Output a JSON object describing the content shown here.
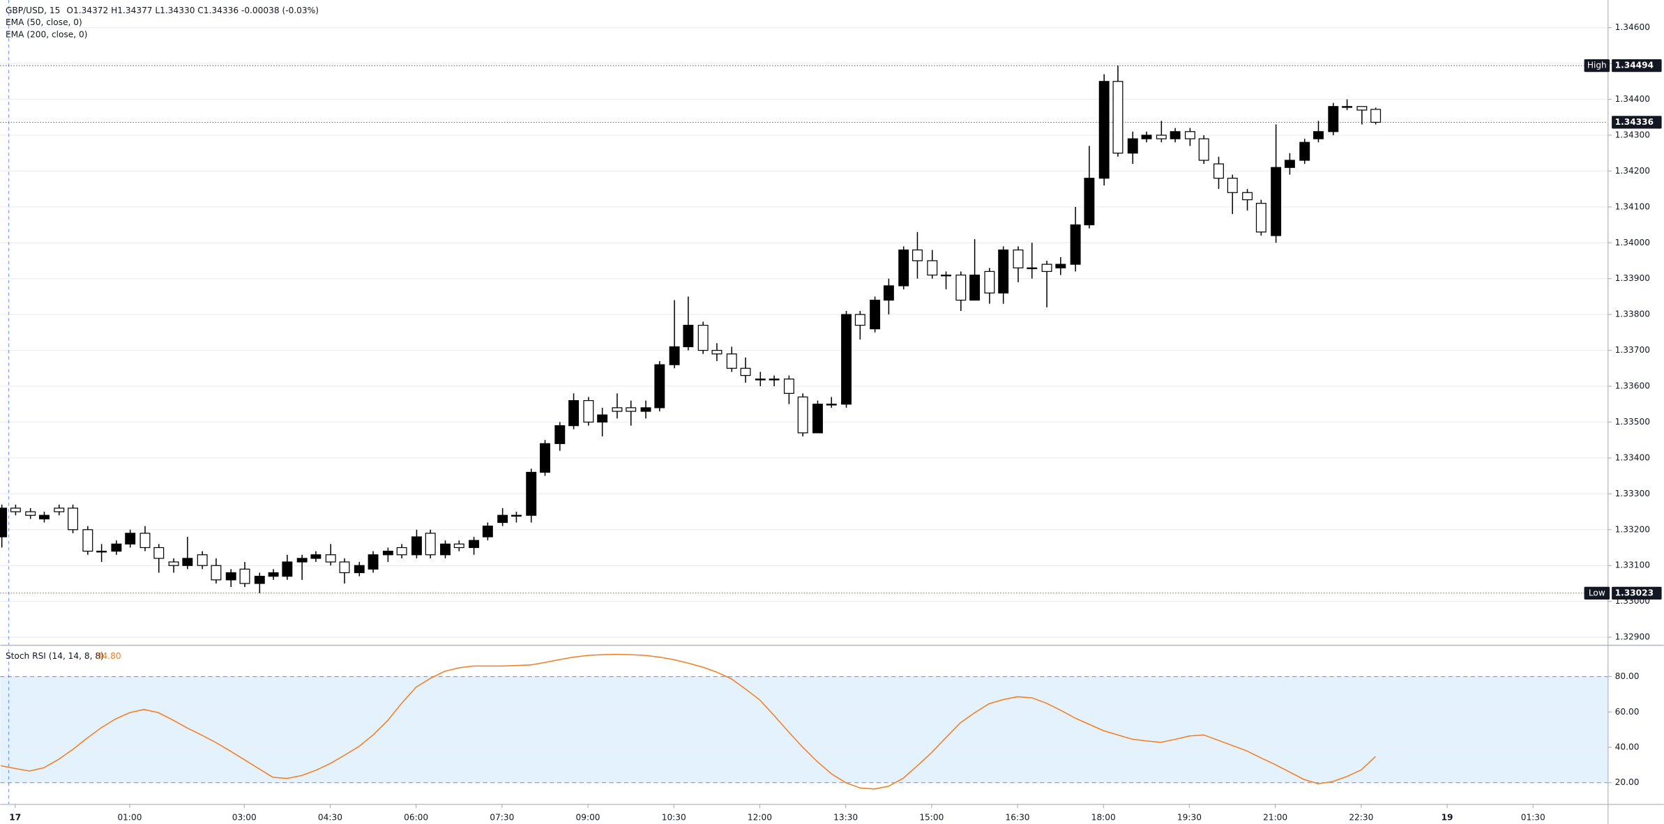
{
  "chart_data": [
    {
      "type": "candlestick",
      "title": "GBP/USD, 15",
      "ohlc": "O1.34372  H1.34377  L1.34330  C1.34336  -0.00038 (-0.03%)",
      "indicators": [
        "EMA (50, close, 0)",
        "EMA (200, close, 0)"
      ],
      "x": [
        -1.25,
        -1,
        -0.75,
        -0.5,
        -0.25,
        0,
        0.25,
        0.5,
        0.75,
        1,
        1.25,
        1.5,
        1.75,
        2,
        2.25,
        2.5,
        2.75,
        3,
        3.25,
        3.5,
        3.75,
        4,
        4.25,
        4.5,
        4.75,
        5,
        5.25,
        5.5,
        5.75,
        6,
        6.25,
        6.5,
        6.75,
        7,
        7.25,
        7.5,
        7.75,
        8,
        8.25,
        8.5,
        8.75,
        9,
        9.25,
        9.5,
        9.75,
        10,
        10.25,
        10.5,
        10.75,
        11,
        11.25,
        11.5,
        11.75,
        12,
        12.25,
        12.5,
        12.75,
        13,
        13.25,
        13.5,
        13.75,
        14,
        14.25,
        14.5,
        14.75,
        15,
        15.25,
        15.5,
        15.75,
        16,
        16.25,
        16.5,
        16.75,
        17,
        17.25,
        17.5,
        17.75,
        18,
        18.25,
        18.5,
        18.75,
        19,
        19.25,
        19.5,
        19.75,
        20,
        20.25,
        20.5,
        20.75,
        21,
        21.25,
        21.5,
        21.75,
        22,
        22.25,
        22.5,
        22.75
      ],
      "open": [
        1.3318,
        1.3326,
        1.3325,
        1.3323,
        1.3326,
        1.3326,
        1.332,
        1.3314,
        1.3314,
        1.3316,
        1.3319,
        1.3315,
        1.3311,
        1.331,
        1.3313,
        1.331,
        1.3306,
        1.3309,
        1.3305,
        1.3307,
        1.3307,
        1.3311,
        1.3312,
        1.3313,
        1.3311,
        1.3308,
        1.3309,
        1.3313,
        1.3315,
        1.3313,
        1.3319,
        1.3313,
        1.3316,
        1.3315,
        1.3318,
        1.3322,
        1.3324,
        1.3324,
        1.3336,
        1.3344,
        1.3349,
        1.3356,
        1.335,
        1.3354,
        1.3354,
        1.3353,
        1.3354,
        1.3366,
        1.3371,
        1.3377,
        1.337,
        1.3369,
        1.3365,
        1.3362,
        1.3362,
        1.3362,
        1.3357,
        1.3347,
        1.3355,
        1.3355,
        1.338,
        1.3376,
        1.3384,
        1.3388,
        1.3398,
        1.3395,
        1.3391,
        1.3391,
        1.3384,
        1.3392,
        1.3386,
        1.3398,
        1.3393,
        1.3394,
        1.3393,
        1.3394,
        1.3405,
        1.3418,
        1.3445,
        1.3425,
        1.3429,
        1.343,
        1.3429,
        1.3431,
        1.3429,
        1.3422,
        1.3418,
        1.3414,
        1.3411,
        1.3402,
        1.3421,
        1.3423,
        1.3429,
        1.3431,
        1.3438,
        1.3438,
        1.34372
      ],
      "high": [
        1.3327,
        1.3327,
        1.3326,
        1.3325,
        1.3327,
        1.3327,
        1.3321,
        1.3316,
        1.3317,
        1.332,
        1.3321,
        1.3316,
        1.3312,
        1.3318,
        1.3314,
        1.3312,
        1.3309,
        1.3311,
        1.3308,
        1.3309,
        1.3313,
        1.3313,
        1.3314,
        1.3316,
        1.3312,
        1.3311,
        1.3314,
        1.3315,
        1.3316,
        1.332,
        1.332,
        1.3317,
        1.3317,
        1.3318,
        1.3322,
        1.3326,
        1.3325,
        1.3337,
        1.3345,
        1.335,
        1.3358,
        1.3357,
        1.3354,
        1.3358,
        1.3356,
        1.3356,
        1.3367,
        1.3384,
        1.3385,
        1.3378,
        1.3372,
        1.3371,
        1.3368,
        1.3364,
        1.3363,
        1.3363,
        1.3358,
        1.3356,
        1.3357,
        1.3381,
        1.3381,
        1.3385,
        1.339,
        1.3399,
        1.3403,
        1.3398,
        1.3392,
        1.3392,
        1.3401,
        1.3393,
        1.3399,
        1.3399,
        1.34,
        1.3395,
        1.3396,
        1.341,
        1.3427,
        1.3447,
        1.34494,
        1.3431,
        1.3431,
        1.3434,
        1.3432,
        1.3432,
        1.343,
        1.3424,
        1.3419,
        1.3415,
        1.3412,
        1.3433,
        1.3425,
        1.3429,
        1.3434,
        1.3439,
        1.344,
        1.3438,
        1.34377
      ],
      "low": [
        1.3315,
        1.3324,
        1.3323,
        1.3322,
        1.3324,
        1.3319,
        1.3313,
        1.3311,
        1.3313,
        1.3315,
        1.3314,
        1.3308,
        1.3308,
        1.3309,
        1.3309,
        1.3305,
        1.3304,
        1.3304,
        1.33023,
        1.3306,
        1.3306,
        1.3306,
        1.3311,
        1.331,
        1.3305,
        1.3307,
        1.3308,
        1.3311,
        1.3312,
        1.3312,
        1.3312,
        1.3312,
        1.3314,
        1.3313,
        1.3317,
        1.3321,
        1.3322,
        1.3322,
        1.3335,
        1.3342,
        1.3348,
        1.3349,
        1.3346,
        1.3351,
        1.3349,
        1.3351,
        1.3353,
        1.3365,
        1.337,
        1.3369,
        1.3367,
        1.3364,
        1.3361,
        1.336,
        1.336,
        1.3355,
        1.3346,
        1.3347,
        1.3354,
        1.3354,
        1.3373,
        1.3375,
        1.338,
        1.3387,
        1.339,
        1.339,
        1.3387,
        1.3381,
        1.3384,
        1.3383,
        1.3383,
        1.3389,
        1.339,
        1.3382,
        1.3391,
        1.3392,
        1.3404,
        1.3416,
        1.3424,
        1.3422,
        1.3428,
        1.3428,
        1.3428,
        1.3427,
        1.3422,
        1.3415,
        1.3408,
        1.3409,
        1.3402,
        1.34,
        1.3419,
        1.3422,
        1.3428,
        1.343,
        1.3437,
        1.3433,
        1.3433
      ],
      "close": [
        1.3326,
        1.3325,
        1.3324,
        1.3324,
        1.3325,
        1.332,
        1.3314,
        1.3314,
        1.3316,
        1.3319,
        1.3315,
        1.3312,
        1.331,
        1.3312,
        1.331,
        1.3306,
        1.3308,
        1.3305,
        1.3307,
        1.3308,
        1.3311,
        1.3312,
        1.3313,
        1.3311,
        1.3308,
        1.331,
        1.3313,
        1.3314,
        1.3313,
        1.3318,
        1.3313,
        1.3316,
        1.3315,
        1.3317,
        1.3321,
        1.3324,
        1.3324,
        1.3336,
        1.3344,
        1.3349,
        1.3356,
        1.335,
        1.3352,
        1.3353,
        1.3353,
        1.3354,
        1.3366,
        1.3371,
        1.3377,
        1.337,
        1.3369,
        1.3365,
        1.3363,
        1.3362,
        1.3362,
        1.3358,
        1.3347,
        1.3355,
        1.3355,
        1.338,
        1.3377,
        1.3384,
        1.3388,
        1.3398,
        1.3395,
        1.3391,
        1.3391,
        1.3384,
        1.3391,
        1.3386,
        1.3398,
        1.3393,
        1.3393,
        1.3392,
        1.3394,
        1.3405,
        1.3418,
        1.3445,
        1.3425,
        1.3429,
        1.343,
        1.3429,
        1.3431,
        1.3429,
        1.3423,
        1.3418,
        1.3414,
        1.3412,
        1.3403,
        1.3421,
        1.3423,
        1.3428,
        1.3431,
        1.3438,
        1.3438,
        1.3437,
        1.34336
      ],
      "up_color": "#000000",
      "down_color": "#ffffff",
      "xlim": [
        -1.26,
        26.8
      ],
      "ylim": [
        1.32879,
        1.34677
      ],
      "yticks": [
        {
          "value": 1.346,
          "label": "1.34600"
        },
        {
          "value": 1.345,
          "label": "1.34500"
        },
        {
          "value": 1.344,
          "label": "1.34400"
        },
        {
          "value": 1.343,
          "label": "1.34300"
        },
        {
          "value": 1.342,
          "label": "1.34200"
        },
        {
          "value": 1.341,
          "label": "1.34100"
        },
        {
          "value": 1.34,
          "label": "1.34000"
        },
        {
          "value": 1.339,
          "label": "1.33900"
        },
        {
          "value": 1.338,
          "label": "1.33800"
        },
        {
          "value": 1.337,
          "label": "1.33700"
        },
        {
          "value": 1.336,
          "label": "1.33600"
        },
        {
          "value": 1.335,
          "label": "1.33500"
        },
        {
          "value": 1.334,
          "label": "1.33400"
        },
        {
          "value": 1.333,
          "label": "1.33300"
        },
        {
          "value": 1.332,
          "label": "1.33200"
        },
        {
          "value": 1.331,
          "label": "1.33100"
        },
        {
          "value": 1.33,
          "label": "1.33000"
        },
        {
          "value": 1.329,
          "label": "1.32900"
        }
      ],
      "grid": true,
      "markers": [
        {
          "name": "High",
          "value": 1.34494
        },
        {
          "name": "Low",
          "value": 1.33023
        }
      ],
      "last_price": 1.34336
    },
    {
      "type": "line",
      "title": "Stoch RSI (14, 14, 8, 8)",
      "value_label": "34.80",
      "x": [
        -1.25,
        -1,
        -0.75,
        -0.5,
        -0.25,
        0,
        0.25,
        0.5,
        0.75,
        1,
        1.25,
        1.5,
        1.75,
        2,
        2.25,
        2.5,
        2.75,
        3,
        3.25,
        3.5,
        3.75,
        4,
        4.25,
        4.5,
        4.75,
        5,
        5.25,
        5.5,
        5.75,
        6,
        6.25,
        6.5,
        6.75,
        7,
        7.25,
        7.5,
        7.75,
        8,
        8.25,
        8.5,
        8.75,
        9,
        9.25,
        9.5,
        9.75,
        10,
        10.25,
        10.5,
        10.75,
        11,
        11.25,
        11.5,
        11.75,
        12,
        12.25,
        12.5,
        12.75,
        13,
        13.25,
        13.5,
        13.75,
        14,
        14.25,
        14.5,
        14.75,
        15,
        15.25,
        15.5,
        15.75,
        16,
        16.25,
        16.5,
        16.75,
        17,
        17.25,
        17.5,
        17.75,
        18,
        18.25,
        18.5,
        18.75,
        19,
        19.25,
        19.5,
        19.75,
        20,
        20.25,
        20.5,
        20.75,
        21,
        21.25,
        21.5,
        21.75,
        22,
        22.25,
        22.5,
        22.75
      ],
      "series": [
        {
          "name": "Stoch RSI",
          "color": "#f57c1f",
          "values": [
            29.6,
            28,
            26.6,
            28.4,
            33,
            38.6,
            45,
            51,
            56,
            59.6,
            61.4,
            59.6,
            55.5,
            51,
            47,
            42.8,
            38,
            33,
            28,
            23,
            22.4,
            24,
            27,
            30.8,
            35.5,
            40.4,
            47,
            55,
            65,
            74,
            79,
            83,
            85,
            86,
            86,
            86,
            86.3,
            86.6,
            88,
            89.6,
            91,
            92,
            92.4,
            92.6,
            92.4,
            92,
            91,
            89.6,
            87.6,
            85.4,
            82.5,
            78.8,
            73,
            66.8,
            58,
            48.8,
            40,
            32,
            25,
            20,
            17,
            16.4,
            18,
            22.4,
            29.5,
            37,
            45.5,
            53.8,
            59.5,
            64.6,
            67,
            68.6,
            68,
            65,
            61,
            56.6,
            53,
            49.4,
            47,
            44.6,
            43.6,
            42.8,
            44.5,
            46.4,
            47,
            44,
            41,
            38,
            34,
            30.2,
            26,
            21.8,
            19.4,
            20.6,
            23.5,
            27.2,
            34.8
          ]
        }
      ],
      "band": [
        20,
        80
      ],
      "band_color": "#e3f2fd",
      "xlim": [
        -1.26,
        26.8
      ],
      "ylim": [
        8,
        97.4
      ],
      "yticks": [
        {
          "value": 80,
          "label": "80.00"
        },
        {
          "value": 60,
          "label": "60.00"
        },
        {
          "value": 40,
          "label": "40.00"
        },
        {
          "value": 20,
          "label": "20.00"
        }
      ],
      "grid": true,
      "xticks": [
        {
          "value": -1,
          "label": "17"
        },
        {
          "value": 1,
          "label": "01:00"
        },
        {
          "value": 3,
          "label": "03:00"
        },
        {
          "value": 4.5,
          "label": "04:30"
        },
        {
          "value": 6,
          "label": "06:00"
        },
        {
          "value": 7.5,
          "label": "07:30"
        },
        {
          "value": 9,
          "label": "09:00"
        },
        {
          "value": 10.5,
          "label": "10:30"
        },
        {
          "value": 12,
          "label": "12:00"
        },
        {
          "value": 13.5,
          "label": "13:30"
        },
        {
          "value": 15,
          "label": "15:00"
        },
        {
          "value": 16.5,
          "label": "16:30"
        },
        {
          "value": 18,
          "label": "18:00"
        },
        {
          "value": 19.5,
          "label": "19:30"
        },
        {
          "value": 21,
          "label": "21:00"
        },
        {
          "value": 22.5,
          "label": "22:30"
        },
        {
          "value": 24,
          "label": "19"
        },
        {
          "value": 25.5,
          "label": "01:30"
        }
      ]
    }
  ]
}
